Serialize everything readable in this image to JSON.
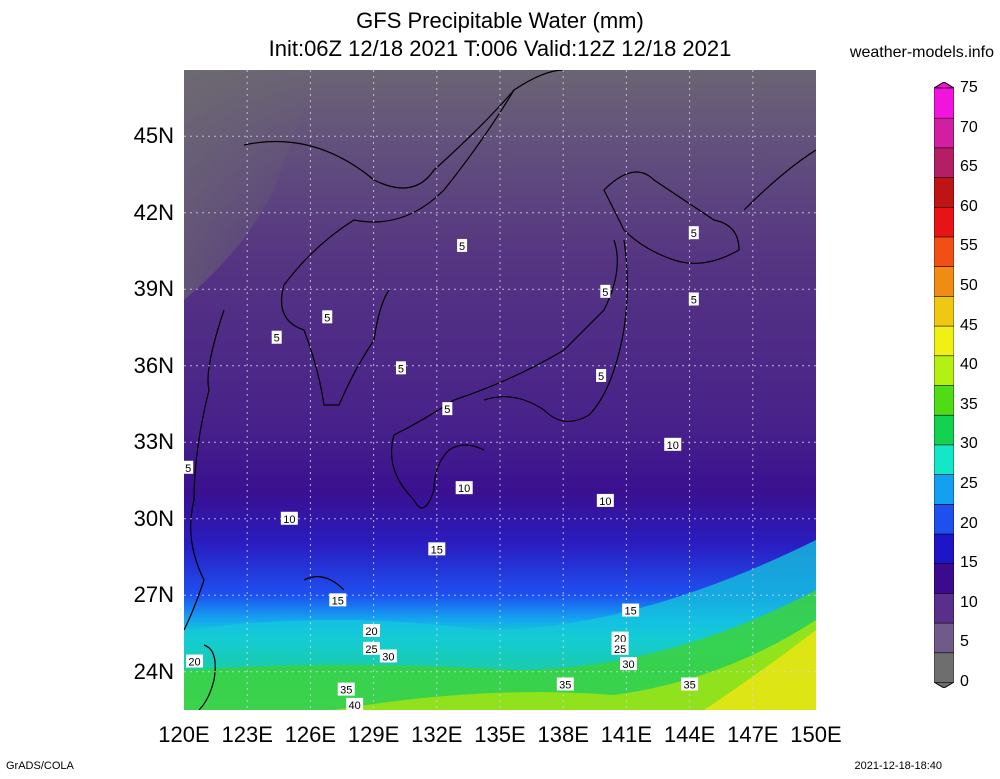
{
  "title": {
    "line1": "GFS Precipitable Water (mm)",
    "line2": "Init:06Z 12/18 2021 T:006 Valid:12Z 12/18 2021"
  },
  "site": "weather-models.info",
  "footer": {
    "left": "GrADS/COLA",
    "right": "2021-12-18-18:40"
  },
  "map": {
    "lat_labels": [
      {
        "text": "45N",
        "lat": 45
      },
      {
        "text": "42N",
        "lat": 42
      },
      {
        "text": "39N",
        "lat": 39
      },
      {
        "text": "36N",
        "lat": 36
      },
      {
        "text": "33N",
        "lat": 33
      },
      {
        "text": "30N",
        "lat": 30
      },
      {
        "text": "27N",
        "lat": 27
      },
      {
        "text": "24N",
        "lat": 24
      }
    ],
    "lon_labels": [
      {
        "text": "120E",
        "lon": 120
      },
      {
        "text": "123E",
        "lon": 123
      },
      {
        "text": "126E",
        "lon": 126
      },
      {
        "text": "129E",
        "lon": 129
      },
      {
        "text": "132E",
        "lon": 132
      },
      {
        "text": "135E",
        "lon": 135
      },
      {
        "text": "138E",
        "lon": 138
      },
      {
        "text": "141E",
        "lon": 141
      },
      {
        "text": "144E",
        "lon": 144
      },
      {
        "text": "147E",
        "lon": 147
      },
      {
        "text": "150E",
        "lon": 150
      }
    ],
    "lat_range": [
      22.5,
      47.6
    ],
    "lon_range": [
      120,
      150
    ],
    "contour_labels": [
      {
        "text": "5",
        "lon": 133.2,
        "lat": 40.7
      },
      {
        "text": "5",
        "lon": 126.8,
        "lat": 37.9
      },
      {
        "text": "5",
        "lon": 124.4,
        "lat": 37.1
      },
      {
        "text": "5",
        "lon": 130.3,
        "lat": 35.9
      },
      {
        "text": "5",
        "lon": 132.5,
        "lat": 34.3
      },
      {
        "text": "5",
        "lon": 140.0,
        "lat": 38.9
      },
      {
        "text": "5",
        "lon": 144.2,
        "lat": 38.6
      },
      {
        "text": "5",
        "lon": 144.2,
        "lat": 41.2
      },
      {
        "text": "5",
        "lon": 139.8,
        "lat": 35.6
      },
      {
        "text": "5",
        "lon": 120.2,
        "lat": 32.0
      },
      {
        "text": "10",
        "lon": 143.2,
        "lat": 32.9
      },
      {
        "text": "10",
        "lon": 133.3,
        "lat": 31.2
      },
      {
        "text": "10",
        "lon": 140.0,
        "lat": 30.7
      },
      {
        "text": "10",
        "lon": 125.0,
        "lat": 30.0
      },
      {
        "text": "15",
        "lon": 132.0,
        "lat": 28.8
      },
      {
        "text": "15",
        "lon": 127.3,
        "lat": 26.8
      },
      {
        "text": "15",
        "lon": 141.2,
        "lat": 26.4
      },
      {
        "text": "20",
        "lon": 128.9,
        "lat": 25.6
      },
      {
        "text": "20",
        "lon": 140.7,
        "lat": 25.3
      },
      {
        "text": "25",
        "lon": 128.9,
        "lat": 24.9
      },
      {
        "text": "25",
        "lon": 140.7,
        "lat": 24.9
      },
      {
        "text": "30",
        "lon": 129.7,
        "lat": 24.6
      },
      {
        "text": "30",
        "lon": 141.1,
        "lat": 24.3
      },
      {
        "text": "20",
        "lon": 120.5,
        "lat": 24.4
      },
      {
        "text": "35",
        "lon": 127.7,
        "lat": 23.3
      },
      {
        "text": "35",
        "lon": 138.1,
        "lat": 23.5
      },
      {
        "text": "35",
        "lon": 144.0,
        "lat": 23.5
      },
      {
        "text": "40",
        "lon": 128.1,
        "lat": 22.7
      }
    ]
  },
  "colorbar": {
    "levels": [
      "0",
      "5",
      "10",
      "15",
      "20",
      "25",
      "30",
      "35",
      "40",
      "45",
      "50",
      "55",
      "60",
      "65",
      "70",
      "75"
    ],
    "colors": [
      "#6e6e6e",
      "#6f5a8a",
      "#5a2f8c",
      "#3c0a8c",
      "#1e14c8",
      "#1e50f0",
      "#14a0f0",
      "#14e6c8",
      "#14d250",
      "#50dc14",
      "#b4f014",
      "#f0f014",
      "#f0c814",
      "#f08c14",
      "#f05014",
      "#e61414",
      "#be1414",
      "#b41e64",
      "#d21ea0",
      "#f014dc"
    ]
  }
}
